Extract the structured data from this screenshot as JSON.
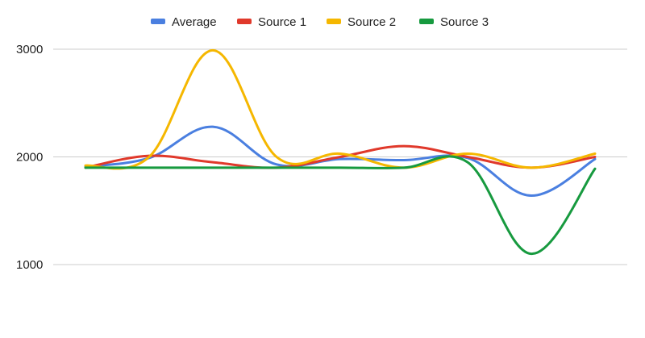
{
  "chart_data": {
    "type": "line",
    "title": "",
    "xlabel": "",
    "ylabel": "",
    "x": [
      1,
      2,
      3,
      4,
      5,
      6,
      7,
      8,
      9
    ],
    "ylim": [
      1000,
      3000
    ],
    "yticks": [
      {
        "value": 1000,
        "label": "1000"
      },
      {
        "value": 2000,
        "label": "2000"
      },
      {
        "value": 3000,
        "label": "3000"
      }
    ],
    "grid": true,
    "legend_position": "top",
    "series": [
      {
        "name": "Average",
        "color": "#4a7fe0",
        "values": [
          1910,
          1990,
          2280,
          1930,
          1980,
          1970,
          1990,
          1640,
          1980
        ]
      },
      {
        "name": "Source 1",
        "color": "#e0392b",
        "values": [
          1900,
          2010,
          1950,
          1900,
          2000,
          2100,
          2000,
          1900,
          2000
        ]
      },
      {
        "name": "Source 2",
        "color": "#f5b700",
        "values": [
          1920,
          2000,
          2990,
          2000,
          2030,
          1900,
          2030,
          1900,
          2030
        ]
      },
      {
        "name": "Source 3",
        "color": "#179a3f",
        "values": [
          1900,
          1900,
          1900,
          1900,
          1900,
          1900,
          1950,
          1100,
          1890
        ]
      }
    ]
  }
}
